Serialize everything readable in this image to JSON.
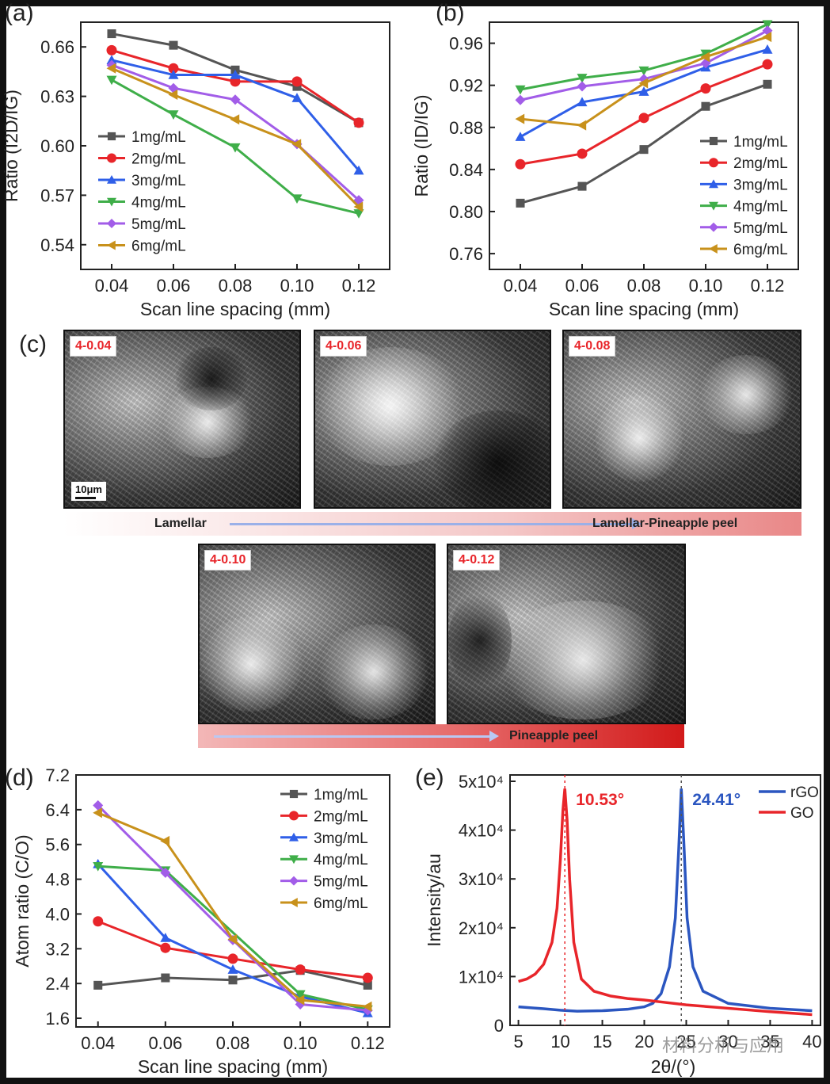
{
  "panels": {
    "a": "(a)",
    "b": "(b)",
    "c": "(c)",
    "d": "(d)",
    "e": "(e)"
  },
  "colors": {
    "1mg/mL": "#555555",
    "2mg/mL": "#e8252a",
    "3mg/mL": "#2f5fe8",
    "4mg/mL": "#3fae49",
    "5mg/mL": "#a25de8",
    "6mg/mL": "#c8911b",
    "rGO": "#2b56c0",
    "GO": "#e8252a"
  },
  "sem": {
    "images": [
      {
        "label": "4-0.04"
      },
      {
        "label": "4-0.06"
      },
      {
        "label": "4-0.08"
      },
      {
        "label": "4-0.10"
      },
      {
        "label": "4-0.12"
      }
    ],
    "scalebar": "10μm",
    "band1_start": "Lamellar",
    "band1_end": "Lamellar-Pineapple peel",
    "band2_end": "Pineapple peel"
  },
  "watermark": "材料分析与应用",
  "chart_data": [
    {
      "id": "a",
      "type": "line",
      "xlabel": "Scan line spacing (mm)",
      "ylabel": "Ratio (I2D/IG)",
      "x": [
        0.04,
        0.06,
        0.08,
        0.1,
        0.12
      ],
      "xticks": [
        "0.04",
        "0.06",
        "0.08",
        "0.10",
        "0.12"
      ],
      "ylim": [
        0.525,
        0.675
      ],
      "yticks": [
        "0.54",
        "0.57",
        "0.60",
        "0.63",
        "0.66"
      ],
      "legend": "bottom-left",
      "series": [
        {
          "name": "1mg/mL",
          "marker": "square",
          "values": [
            0.668,
            0.661,
            0.646,
            0.636,
            0.614
          ]
        },
        {
          "name": "2mg/mL",
          "marker": "circle",
          "values": [
            0.658,
            0.647,
            0.639,
            0.639,
            0.614
          ]
        },
        {
          "name": "3mg/mL",
          "marker": "triangle-up",
          "values": [
            0.652,
            0.643,
            0.643,
            0.629,
            0.585
          ]
        },
        {
          "name": "4mg/mL",
          "marker": "triangle-down",
          "values": [
            0.64,
            0.619,
            0.599,
            0.568,
            0.559
          ]
        },
        {
          "name": "5mg/mL",
          "marker": "diamond",
          "values": [
            0.649,
            0.635,
            0.628,
            0.601,
            0.567
          ]
        },
        {
          "name": "6mg/mL",
          "marker": "triangle-left",
          "values": [
            0.647,
            0.631,
            0.616,
            0.601,
            0.563
          ]
        }
      ]
    },
    {
      "id": "b",
      "type": "line",
      "xlabel": "Scan line spacing (mm)",
      "ylabel": "Ratio (ID/IG)",
      "x": [
        0.04,
        0.06,
        0.08,
        0.1,
        0.12
      ],
      "xticks": [
        "0.04",
        "0.06",
        "0.08",
        "0.10",
        "0.12"
      ],
      "ylim": [
        0.745,
        0.98
      ],
      "yticks": [
        "0.76",
        "0.80",
        "0.84",
        "0.88",
        "0.92",
        "0.96"
      ],
      "legend": "bottom-right",
      "series": [
        {
          "name": "1mg/mL",
          "marker": "square",
          "values": [
            0.808,
            0.824,
            0.859,
            0.9,
            0.921
          ]
        },
        {
          "name": "2mg/mL",
          "marker": "circle",
          "values": [
            0.845,
            0.855,
            0.889,
            0.917,
            0.94
          ]
        },
        {
          "name": "3mg/mL",
          "marker": "triangle-up",
          "values": [
            0.871,
            0.904,
            0.914,
            0.937,
            0.954
          ]
        },
        {
          "name": "4mg/mL",
          "marker": "triangle-down",
          "values": [
            0.916,
            0.927,
            0.934,
            0.95,
            0.978
          ]
        },
        {
          "name": "5mg/mL",
          "marker": "diamond",
          "values": [
            0.906,
            0.919,
            0.926,
            0.941,
            0.972
          ]
        },
        {
          "name": "6mg/mL",
          "marker": "triangle-left",
          "values": [
            0.888,
            0.882,
            0.922,
            0.947,
            0.966
          ]
        }
      ]
    },
    {
      "id": "d",
      "type": "line",
      "xlabel": "Scan line spacing (mm)",
      "ylabel": "Atom ratio (C/O)",
      "x": [
        0.04,
        0.06,
        0.08,
        0.1,
        0.12
      ],
      "xticks": [
        "0.04",
        "0.06",
        "0.08",
        "0.10",
        "0.12"
      ],
      "ylim": [
        1.4,
        7.2
      ],
      "yticks": [
        "1.6",
        "2.4",
        "3.2",
        "4.0",
        "4.8",
        "5.6",
        "6.4",
        "7.2"
      ],
      "legend": "top-right",
      "series": [
        {
          "name": "1mg/mL",
          "marker": "square",
          "values": [
            2.36,
            2.53,
            2.48,
            2.7,
            2.36
          ]
        },
        {
          "name": "2mg/mL",
          "marker": "circle",
          "values": [
            3.83,
            3.22,
            2.97,
            2.72,
            2.53
          ]
        },
        {
          "name": "3mg/mL",
          "marker": "triangle-up",
          "values": [
            5.15,
            3.45,
            2.72,
            2.1,
            1.72
          ]
        },
        {
          "name": "4mg/mL",
          "marker": "triangle-down",
          "values": [
            5.1,
            5.0,
            null,
            2.15,
            1.8
          ]
        },
        {
          "name": "5mg/mL",
          "marker": "diamond",
          "values": [
            6.5,
            4.95,
            3.4,
            1.92,
            1.78
          ]
        },
        {
          "name": "6mg/mL",
          "marker": "triangle-left",
          "values": [
            6.33,
            5.68,
            3.42,
            2.02,
            1.87
          ]
        }
      ]
    },
    {
      "id": "e",
      "type": "line",
      "xlabel": "2θ/(°)",
      "ylabel": "Intensity/au",
      "xlim": [
        4,
        41
      ],
      "xticks": [
        "5",
        "10",
        "15",
        "20",
        "25",
        "30",
        "35",
        "40"
      ],
      "ylim": [
        0,
        50000
      ],
      "yticks": [
        "0",
        "1x10⁴",
        "2x10⁴",
        "3x10⁴",
        "4x10⁴",
        "5x10⁴"
      ],
      "legend": "top-right",
      "annotations": [
        {
          "text": "10.53°",
          "x": 10.53,
          "series": "GO"
        },
        {
          "text": "24.41°",
          "x": 24.41,
          "series": "rGO"
        }
      ],
      "series": [
        {
          "name": "rGO",
          "peak_x": 24.41,
          "peak_y": 48500,
          "x": [
            5,
            8,
            10,
            12,
            15,
            18,
            20,
            21,
            22,
            23,
            23.7,
            24.1,
            24.41,
            24.7,
            25.1,
            25.8,
            27,
            30,
            35,
            40
          ],
          "values": [
            3800,
            3400,
            3100,
            2900,
            3000,
            3300,
            3800,
            4500,
            6500,
            12000,
            22000,
            36000,
            48500,
            38000,
            22000,
            12000,
            7000,
            4500,
            3500,
            3000
          ]
        },
        {
          "name": "GO",
          "peak_x": 10.53,
          "peak_y": 48500,
          "x": [
            5,
            6,
            7,
            8,
            9,
            9.6,
            10.0,
            10.3,
            10.53,
            10.8,
            11.1,
            11.6,
            12.5,
            14,
            16,
            18,
            20,
            22,
            25,
            30,
            35,
            40
          ],
          "values": [
            9000,
            9500,
            10500,
            12500,
            17000,
            24000,
            34000,
            44000,
            48500,
            42000,
            30000,
            17000,
            9500,
            7000,
            6000,
            5500,
            5200,
            4800,
            4200,
            3500,
            2800,
            2200
          ]
        }
      ]
    }
  ]
}
